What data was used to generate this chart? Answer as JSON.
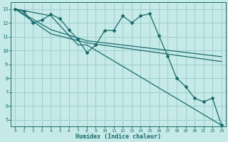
{
  "xlabel": "Humidex (Indice chaleur)",
  "bg_color": "#c5eae8",
  "grid_color": "#9ecece",
  "line_color": "#1a6b6b",
  "xlim": [
    -0.5,
    23.5
  ],
  "ylim": [
    4.5,
    13.5
  ],
  "xticks": [
    0,
    1,
    2,
    3,
    4,
    5,
    6,
    7,
    8,
    9,
    10,
    11,
    12,
    13,
    14,
    15,
    16,
    17,
    18,
    19,
    20,
    21,
    22,
    23
  ],
  "yticks": [
    5,
    6,
    7,
    8,
    9,
    10,
    11,
    12,
    13
  ],
  "line1_x": [
    0,
    1,
    2,
    3,
    4,
    5,
    6,
    7,
    8,
    9,
    10,
    11,
    12,
    13,
    14,
    15,
    16,
    17,
    18,
    19,
    20,
    21,
    22,
    23
  ],
  "line1_y": [
    13.0,
    12.8,
    12.0,
    12.2,
    12.6,
    12.3,
    11.5,
    10.8,
    9.85,
    10.4,
    11.45,
    11.45,
    12.5,
    12.0,
    12.5,
    12.65,
    11.1,
    9.6,
    8.0,
    7.4,
    6.55,
    6.3,
    6.55,
    4.6
  ],
  "line2_x": [
    0,
    4,
    7,
    8,
    23
  ],
  "line2_y": [
    13.0,
    12.5,
    10.4,
    10.4,
    4.6
  ],
  "line3_x": [
    0,
    4,
    8,
    23
  ],
  "line3_y": [
    13.0,
    11.2,
    10.55,
    9.2
  ],
  "line4_x": [
    0,
    4,
    8,
    23
  ],
  "line4_y": [
    13.0,
    11.5,
    10.7,
    9.55
  ]
}
